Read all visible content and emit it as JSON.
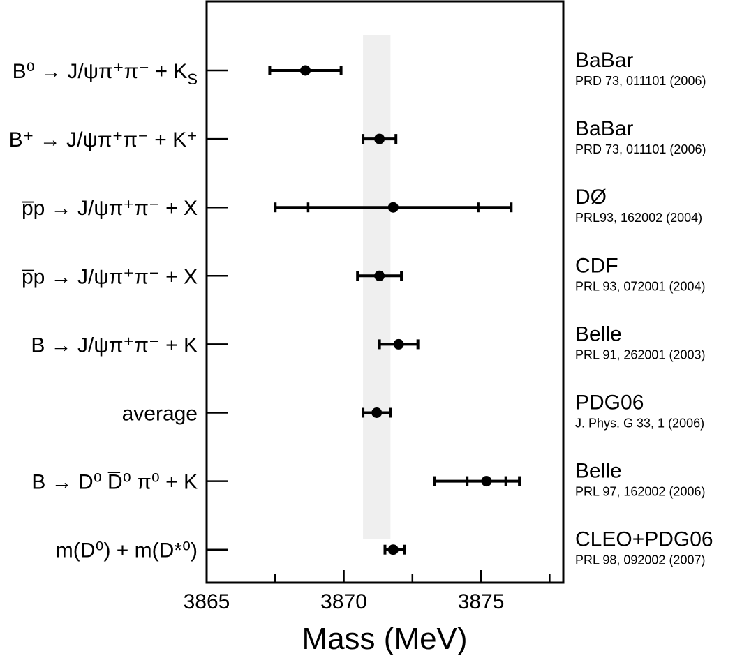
{
  "chart_data": {
    "type": "scatter",
    "subtype": "error-bar-comparison",
    "xlabel": "Mass (MeV)",
    "ylabel": "",
    "title": "",
    "xlim": [
      3865,
      3878
    ],
    "x_ticks": [
      3865,
      3870,
      3875
    ],
    "x_minor_ticks": [
      3867.5,
      3872.5,
      3877.5
    ],
    "grid": false,
    "band": {
      "x0": 3870.7,
      "x1": 3871.7,
      "color": "#efefef"
    },
    "rows": [
      {
        "label_main": "B⁰ → J/ψπ⁺π⁻ + K",
        "label_sub": "S",
        "experiment": "BaBar",
        "reference": "PRD 73, 011101 (2006)",
        "value": 3868.6,
        "stat": [
          3867.3,
          3869.9
        ],
        "total": [
          3867.3,
          3869.9
        ]
      },
      {
        "label_main": "B⁺ → J/ψπ⁺π⁻ + K⁺",
        "label_sub": "",
        "experiment": "BaBar",
        "reference": "PRD 73, 011101 (2006)",
        "value": 3871.3,
        "stat": [
          3870.7,
          3871.9
        ],
        "total": [
          3870.7,
          3871.9
        ]
      },
      {
        "label_main": "p̅p → J/ψπ⁺π⁻ + X",
        "label_sub": "",
        "experiment": "DØ",
        "reference": "PRL93, 162002 (2004)",
        "value": 3871.8,
        "stat": [
          3868.7,
          3874.9
        ],
        "total": [
          3867.5,
          3876.1
        ]
      },
      {
        "label_main": "p̅p → J/ψπ⁺π⁻ + X",
        "label_sub": "",
        "experiment": "CDF",
        "reference": "PRL 93, 072001 (2004)",
        "value": 3871.3,
        "stat": [
          3870.5,
          3872.1
        ],
        "total": [
          3870.5,
          3872.1
        ]
      },
      {
        "label_main": "B → J/ψπ⁺π⁻ + K",
        "label_sub": "",
        "experiment": "Belle",
        "reference": "PRL 91, 262001 (2003)",
        "value": 3872.0,
        "stat": [
          3871.3,
          3872.7
        ],
        "total": [
          3871.3,
          3872.7
        ]
      },
      {
        "label_main": "average",
        "label_sub": "",
        "experiment": "PDG06",
        "reference": "J. Phys. G 33, 1 (2006)",
        "value": 3871.2,
        "stat": [
          3870.7,
          3871.7
        ],
        "total": [
          3870.7,
          3871.7
        ]
      },
      {
        "label_main": "B → D⁰ D̅⁰ π⁰ + K",
        "label_sub": "",
        "experiment": "Belle",
        "reference": "PRL 97, 162002 (2006)",
        "value": 3875.2,
        "stat": [
          3874.5,
          3875.9
        ],
        "total": [
          3873.3,
          3876.4
        ]
      },
      {
        "label_main": "m(D⁰) + m(D*⁰)",
        "label_sub": "",
        "experiment": "CLEO+PDG06",
        "reference": "PRL 98, 092002 (2007)",
        "value": 3871.8,
        "stat": [
          3871.5,
          3872.2
        ],
        "total": [
          3871.5,
          3872.2
        ]
      }
    ]
  }
}
